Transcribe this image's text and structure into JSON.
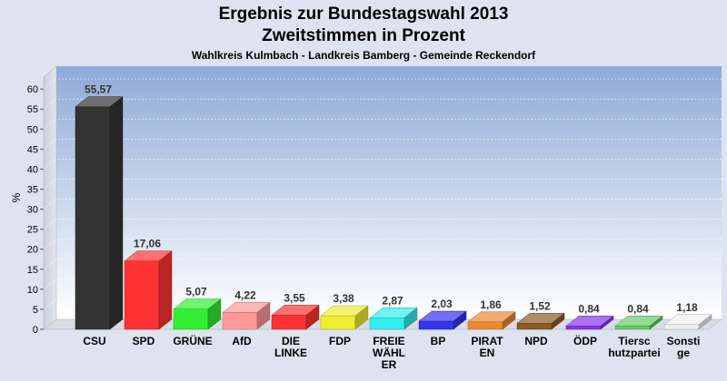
{
  "title": "Ergebnis zur Bundestagswahl 2013",
  "subtitle": "Zweitstimmen in Prozent",
  "subtitle2": "Wahlkreis Kulmbach - Landkreis Bamberg - Gemeinde Reckendorf",
  "chart_data": {
    "type": "bar",
    "title": "Ergebnis zur Bundestagswahl 2013",
    "subtitle": "Zweitstimmen in Prozent",
    "xlabel": "",
    "ylabel": "%",
    "ylim": [
      0,
      65
    ],
    "yticks": [
      0,
      5,
      10,
      15,
      20,
      25,
      30,
      35,
      40,
      45,
      50,
      55,
      60
    ],
    "grid": true,
    "categories": [
      [
        "CSU"
      ],
      [
        "SPD"
      ],
      [
        "GRÜNE"
      ],
      [
        "AfD"
      ],
      [
        "DIE",
        "LINKE"
      ],
      [
        "FDP"
      ],
      [
        "FREIE",
        "WÄHL",
        "ER"
      ],
      [
        "BP"
      ],
      [
        "PIRAT",
        "EN"
      ],
      [
        "NPD"
      ],
      [
        "ÖDP"
      ],
      [
        "Tiersc",
        "hutzpartei"
      ],
      [
        "Sonsti",
        "ge"
      ]
    ],
    "values": [
      55.57,
      17.06,
      5.07,
      4.22,
      3.55,
      3.38,
      2.87,
      2.03,
      1.86,
      1.52,
      0.84,
      0.84,
      1.18
    ],
    "value_labels": [
      "55,57",
      "17,06",
      "5,07",
      "4,22",
      "3,55",
      "3,38",
      "2,87",
      "2,03",
      "1,86",
      "1,52",
      "0,84",
      "0,84",
      "1,18"
    ],
    "colors": [
      "#333333",
      "#ff3333",
      "#33ee33",
      "#ff9999",
      "#ff3333",
      "#eeee33",
      "#33eeee",
      "#3333ee",
      "#ee8833",
      "#8b5a2b",
      "#8833ee",
      "#66cc66",
      "#f0f0f0"
    ]
  }
}
